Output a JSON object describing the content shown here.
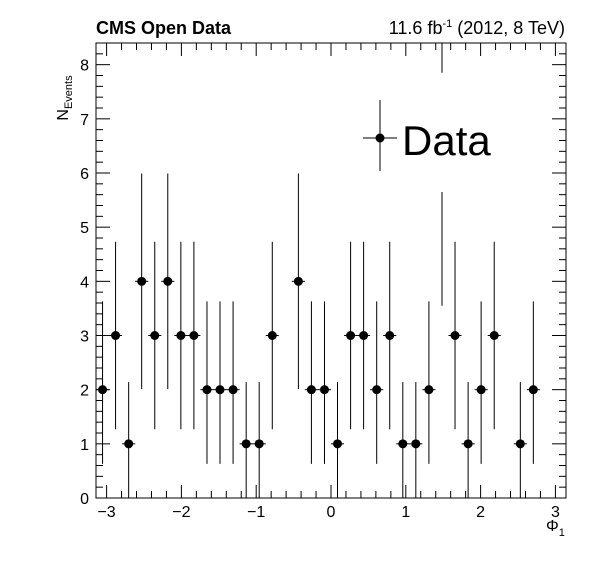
{
  "header": {
    "experiment": "CMS Open Data",
    "lumi_value": "11.6 fb",
    "lumi_exponent": "-1",
    "lumi_tail": " (2012, 8 TeV)"
  },
  "axes": {
    "ylabel_main": "N",
    "ylabel_sub": "Events",
    "xlabel_main": "Φ",
    "xlabel_sub": "1"
  },
  "chart_data": {
    "type": "scatter",
    "xlabel": "Φ1",
    "ylabel": "N_Events",
    "xlim": [
      -3.1416,
      3.1416
    ],
    "ylim": [
      0,
      8.4
    ],
    "x_ticks": [
      -3,
      -2,
      -1,
      0,
      1,
      2,
      3
    ],
    "x_tick_labels": [
      "−3",
      "−2",
      "−1",
      "0",
      "1",
      "2",
      "3"
    ],
    "y_ticks": [
      0,
      1,
      2,
      3,
      4,
      5,
      6,
      7,
      8
    ],
    "y_tick_labels": [
      "0",
      "1",
      "2",
      "3",
      "4",
      "5",
      "6",
      "7",
      "8"
    ],
    "bins": 36,
    "series": [
      {
        "name": "Data",
        "color": "#000000",
        "x": [
          -3.054,
          -2.88,
          -2.705,
          -2.531,
          -2.356,
          -2.182,
          -2.007,
          -1.833,
          -1.658,
          -1.484,
          -1.309,
          -1.134,
          -0.96,
          -0.785,
          -0.436,
          -0.262,
          -0.087,
          0.087,
          0.262,
          0.436,
          0.611,
          0.785,
          0.96,
          1.134,
          1.309,
          1.658,
          1.833,
          2.007,
          2.182,
          2.531,
          2.705
        ],
        "y": [
          2,
          3,
          1,
          4,
          3,
          4,
          3,
          3,
          2,
          2,
          2,
          1,
          1,
          3,
          4,
          2,
          2,
          1,
          3,
          3,
          2,
          3,
          1,
          1,
          2,
          3,
          1,
          2,
          3,
          1,
          2
        ],
        "y_err_up": [
          1.63,
          1.73,
          1.14,
          1.99,
          1.73,
          1.99,
          1.73,
          1.73,
          1.63,
          1.63,
          1.63,
          1.14,
          1.14,
          1.73,
          1.99,
          1.63,
          1.63,
          1.14,
          1.73,
          1.73,
          1.63,
          1.73,
          1.14,
          1.14,
          1.63,
          1.73,
          1.14,
          1.63,
          1.73,
          1.14,
          1.63
        ],
        "y_err_down": [
          1.37,
          1.73,
          1.0,
          1.99,
          1.73,
          1.99,
          1.73,
          1.73,
          1.37,
          1.37,
          1.37,
          1.0,
          1.0,
          1.73,
          1.99,
          1.37,
          1.37,
          1.0,
          1.73,
          1.73,
          1.37,
          1.73,
          1.0,
          1.0,
          1.37,
          1.73,
          1.0,
          1.37,
          1.73,
          1.0,
          1.37
        ]
      }
    ],
    "extra_error_bars": [
      {
        "x": 1.484,
        "y_low": 3.55,
        "y_high": 5.65
      },
      {
        "x": 1.484,
        "y_low": 7.85,
        "y_high": 8.4
      }
    ],
    "legend": {
      "entries": [
        "Data"
      ],
      "placement": "top-right"
    },
    "grid": false
  }
}
